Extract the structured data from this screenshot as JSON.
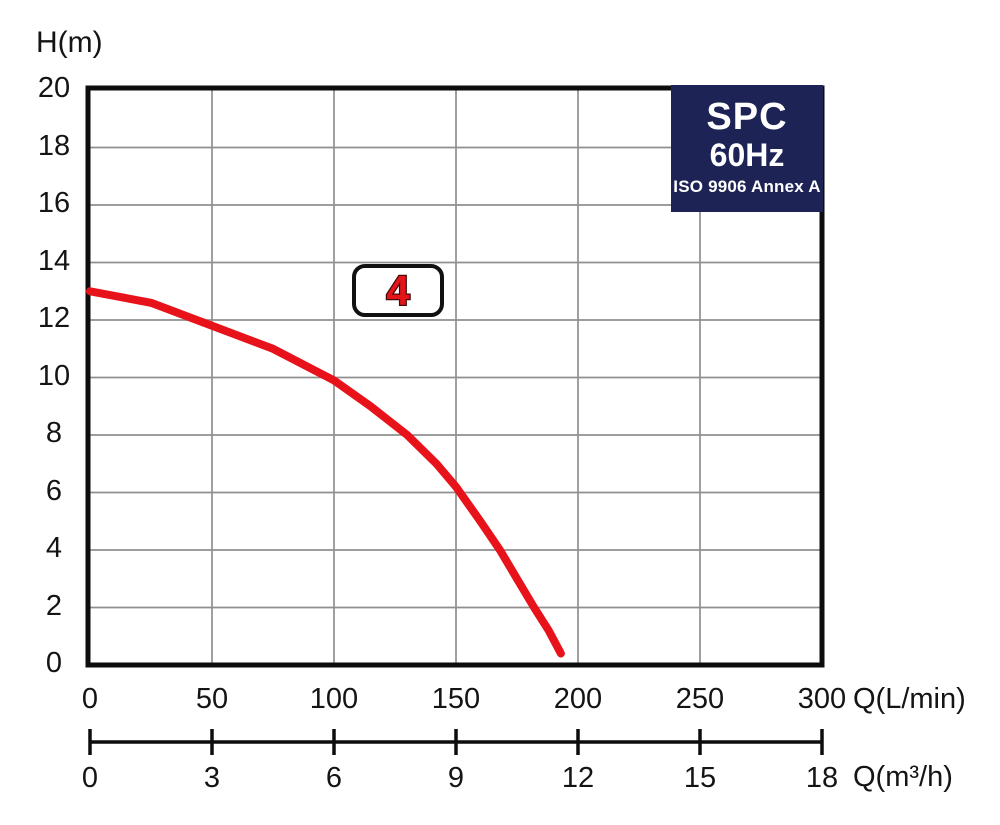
{
  "y_axis_title": "H(m)",
  "axis_units": {
    "primary": "Q(L/min)",
    "secondary": "Q(m³/h)"
  },
  "badge": {
    "line1": "SPC",
    "line2": "60Hz",
    "line3": "ISO 9906 Annex A",
    "bg": "#1d2455",
    "text_color": "#ffffff"
  },
  "curve_label": "4",
  "colors": {
    "curve": "#e8121a",
    "grid": "#8f8f8f",
    "axis": "#0d0d0d",
    "text": "#141414",
    "curve_label_fill": "#e41418",
    "curve_label_stroke": "#470a0c"
  },
  "chart_data": {
    "type": "line",
    "title": "SPC 60Hz pump performance curve (ISO 9906 Annex A)",
    "xlabel": "Q(L/min)",
    "x2label": "Q(m³/h)",
    "ylabel": "H(m)",
    "xlim": [
      0,
      300
    ],
    "x2lim": [
      0,
      18
    ],
    "ylim": [
      0,
      20
    ],
    "x_ticks": [
      0,
      50,
      100,
      150,
      200,
      250,
      300
    ],
    "x2_ticks": [
      0,
      3,
      6,
      9,
      12,
      15,
      18
    ],
    "y_ticks": [
      0,
      2,
      4,
      6,
      8,
      10,
      12,
      14,
      16,
      18,
      20
    ],
    "grid": true,
    "legend_position": "none",
    "series": [
      {
        "name": "4",
        "color": "#e8121a",
        "points": [
          [
            0,
            13.0
          ],
          [
            25,
            12.6
          ],
          [
            50,
            11.8
          ],
          [
            75,
            11.0
          ],
          [
            100,
            9.9
          ],
          [
            115,
            9.0
          ],
          [
            130,
            8.0
          ],
          [
            142,
            7.0
          ],
          [
            150,
            6.2
          ],
          [
            160,
            5.0
          ],
          [
            168,
            4.0
          ],
          [
            175,
            3.0
          ],
          [
            182,
            2.0
          ],
          [
            188,
            1.2
          ],
          [
            193,
            0.4
          ]
        ]
      }
    ]
  }
}
